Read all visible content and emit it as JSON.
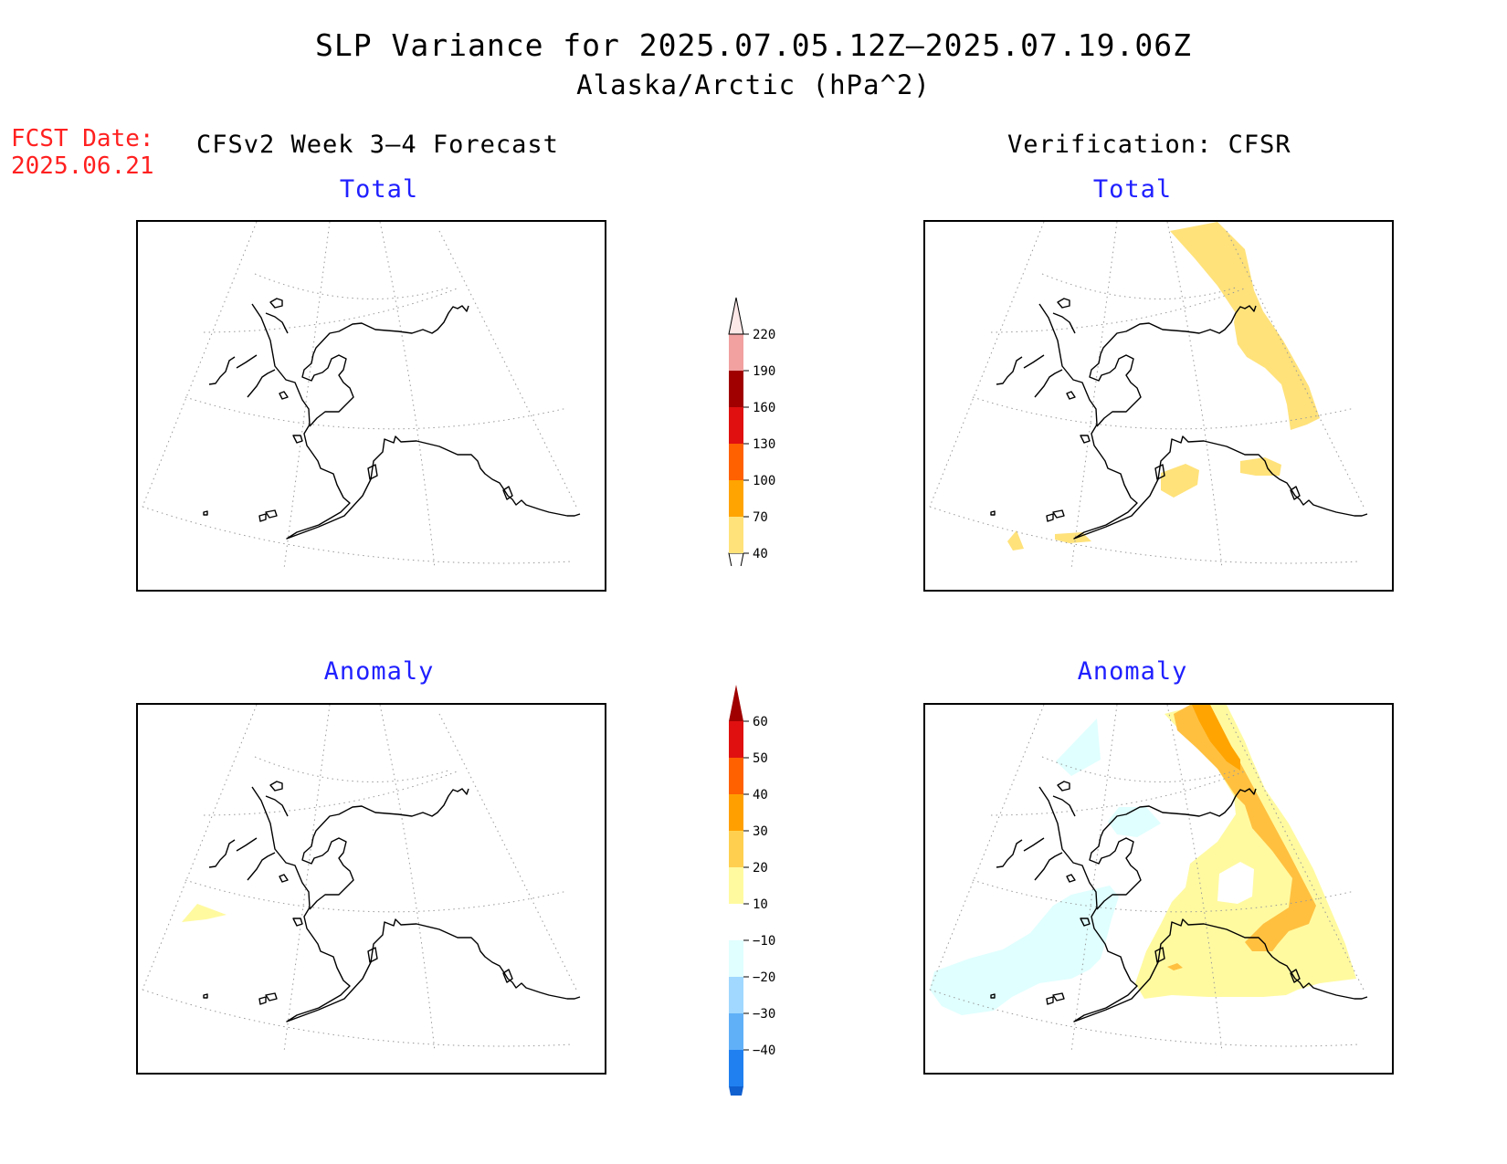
{
  "header": {
    "title": "SLP Variance for 2025.07.05.12Z–2025.07.19.06Z",
    "subtitle": "Alaska/Arctic (hPa^2)",
    "fcst_label": "FCST Date:",
    "fcst_date": "2025.06.21",
    "left_column": "CFSv2 Week 3–4 Forecast",
    "right_column": "Verification: CFSR"
  },
  "panels": {
    "forecast_total": {
      "title": "Total"
    },
    "verification_total": {
      "title": "Total"
    },
    "forecast_anomaly": {
      "title": "Anomaly"
    },
    "verification_anomaly": {
      "title": "Anomaly"
    }
  },
  "colorbars": {
    "total": {
      "levels": [
        "40",
        "70",
        "100",
        "130",
        "160",
        "190",
        "220"
      ],
      "colors": [
        "#ffe27a",
        "#ffa400",
        "#ff6000",
        "#e01010",
        "#a00000",
        "#f2a0a0",
        "#fde8e8"
      ]
    },
    "anomaly": {
      "levels": [
        "−40",
        "−30",
        "−20",
        "−10",
        "10",
        "20",
        "30",
        "40",
        "50",
        "60"
      ],
      "colors": [
        "#1060d0",
        "#2080f0",
        "#60b0f8",
        "#a0d8ff",
        "#e0ffff",
        "#ffffff",
        "#fffaa0",
        "#ffd050",
        "#ffa000",
        "#ff6000",
        "#e01010",
        "#a00000"
      ]
    }
  },
  "colors": {
    "title_text": "#000000",
    "fcst_text": "#ff2020",
    "panel_title_text": "#2020ff",
    "light_yellow": "#fffaa0",
    "yellow": "#ffe27a",
    "light_orange": "#ffc040",
    "orange": "#ffa400",
    "light_cyan": "#e0ffff"
  }
}
